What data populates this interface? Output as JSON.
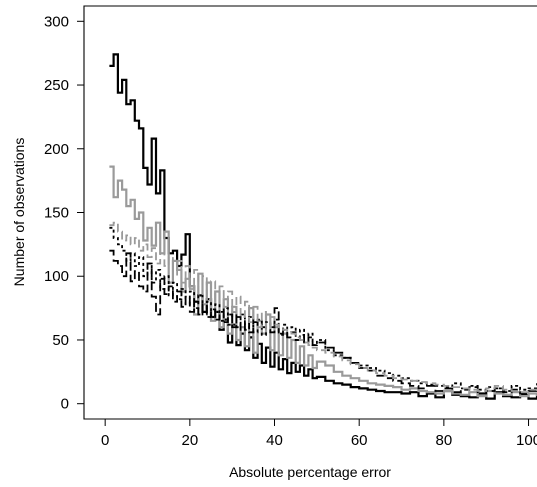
{
  "chart_data": {
    "type": "line",
    "title": "",
    "xlabel": "Absolute percentage error",
    "ylabel": "Number of observations",
    "xlim": [
      -5,
      102
    ],
    "ylim": [
      -12,
      312
    ],
    "xticks": [
      0,
      20,
      40,
      60,
      80,
      100
    ],
    "yticks": [
      0,
      50,
      100,
      150,
      200,
      250,
      300
    ],
    "grid": false,
    "legend": "none",
    "series": [
      {
        "color": "#000000",
        "dash": "solid",
        "width": 2.2,
        "x": [
          1,
          2,
          3,
          4,
          5,
          6,
          7,
          8,
          9,
          10,
          11,
          12,
          13,
          14,
          15,
          16,
          17,
          18,
          19,
          20,
          21,
          22,
          23,
          24,
          25,
          26,
          27,
          28,
          29,
          30,
          31,
          32,
          33,
          34,
          35,
          36,
          37,
          38,
          39,
          40,
          41,
          42,
          43,
          44,
          45,
          46,
          47,
          48,
          49,
          50,
          52,
          54,
          56,
          58,
          60,
          62,
          64,
          66,
          68,
          70,
          72,
          74,
          76,
          78,
          80,
          82,
          84,
          86,
          88,
          90,
          92,
          94,
          96,
          98,
          100,
          102
        ],
        "values": [
          265,
          274,
          244,
          254,
          235,
          238,
          222,
          216,
          185,
          172,
          208,
          165,
          183,
          130,
          118,
          120,
          108,
          117,
          133,
          92,
          80,
          85,
          72,
          82,
          68,
          72,
          58,
          66,
          48,
          62,
          46,
          55,
          42,
          52,
          36,
          47,
          32,
          44,
          29,
          40,
          27,
          35,
          24,
          32,
          25,
          30,
          22,
          27,
          20,
          21,
          18,
          16,
          15,
          13,
          12,
          11,
          10,
          9,
          9,
          8,
          9,
          6,
          8,
          5,
          10,
          7,
          6,
          5,
          8,
          4,
          9,
          6,
          5,
          7,
          4,
          7
        ]
      },
      {
        "color": "#9a9a9a",
        "dash": "solid",
        "width": 2.2,
        "x": [
          1,
          2,
          3,
          4,
          5,
          6,
          7,
          8,
          9,
          10,
          11,
          12,
          13,
          14,
          15,
          16,
          17,
          18,
          19,
          20,
          21,
          22,
          23,
          24,
          25,
          26,
          27,
          28,
          29,
          30,
          31,
          32,
          33,
          34,
          35,
          36,
          37,
          38,
          39,
          40,
          41,
          42,
          43,
          44,
          45,
          46,
          47,
          48,
          49,
          50,
          52,
          54,
          56,
          58,
          60,
          62,
          64,
          66,
          68,
          70,
          72,
          74,
          76,
          78,
          80,
          82,
          84,
          86,
          88,
          90,
          92,
          94,
          96,
          98,
          100,
          102
        ],
        "values": [
          186,
          162,
          175,
          168,
          155,
          160,
          145,
          150,
          128,
          138,
          124,
          142,
          118,
          135,
          95,
          112,
          105,
          88,
          98,
          92,
          70,
          102,
          78,
          95,
          65,
          88,
          60,
          82,
          55,
          76,
          50,
          60,
          45,
          75,
          40,
          65,
          55,
          70,
          42,
          60,
          38,
          55,
          36,
          50,
          32,
          45,
          30,
          38,
          28,
          33,
          30,
          25,
          22,
          20,
          18,
          16,
          15,
          14,
          13,
          11,
          12,
          10,
          9,
          8,
          10,
          8,
          7,
          9,
          6,
          10,
          8,
          7,
          9,
          6,
          8,
          6
        ]
      },
      {
        "color": "#000000",
        "dash": "3,3",
        "width": 1.8,
        "x": [
          1,
          2,
          3,
          4,
          5,
          6,
          7,
          8,
          9,
          10,
          11,
          12,
          13,
          14,
          15,
          16,
          17,
          18,
          19,
          20,
          21,
          22,
          23,
          24,
          25,
          26,
          27,
          28,
          29,
          30,
          31,
          32,
          33,
          34,
          35,
          36,
          37,
          38,
          39,
          40,
          41,
          42,
          43,
          44,
          45,
          46,
          47,
          48,
          49,
          50,
          52,
          54,
          56,
          58,
          60,
          62,
          64,
          66,
          68,
          70,
          72,
          74,
          76,
          78,
          80,
          82,
          84,
          86,
          88,
          90,
          92,
          94,
          96,
          98,
          100,
          102
        ],
        "values": [
          138,
          130,
          125,
          120,
          112,
          118,
          108,
          115,
          100,
          110,
          95,
          105,
          90,
          100,
          85,
          95,
          82,
          90,
          78,
          88,
          75,
          85,
          70,
          80,
          68,
          78,
          65,
          75,
          62,
          72,
          60,
          70,
          58,
          68,
          56,
          66,
          54,
          64,
          60,
          66,
          55,
          62,
          52,
          60,
          50,
          58,
          48,
          55,
          46,
          50,
          42,
          38,
          36,
          32,
          30,
          28,
          26,
          24,
          22,
          20,
          18,
          16,
          15,
          14,
          13,
          16,
          12,
          14,
          11,
          13,
          12,
          10,
          14,
          11,
          12,
          16
        ]
      },
      {
        "color": "#000000",
        "dash": "9,4",
        "width": 1.8,
        "x": [
          1,
          2,
          3,
          4,
          5,
          6,
          7,
          8,
          9,
          10,
          11,
          12,
          13,
          14,
          15,
          16,
          17,
          18,
          19,
          20,
          21,
          22,
          23,
          24,
          25,
          26,
          27,
          28,
          29,
          30,
          31,
          32,
          33,
          34,
          35,
          36,
          37,
          38,
          39,
          40,
          41,
          42,
          43,
          44,
          45,
          46,
          47,
          48,
          49,
          50,
          52,
          54,
          56,
          58,
          60,
          62,
          64,
          66,
          68,
          70,
          72,
          74,
          76,
          78,
          80,
          82,
          84,
          86,
          88,
          90,
          92,
          94,
          96,
          98,
          100,
          102
        ],
        "values": [
          120,
          112,
          108,
          100,
          118,
          96,
          104,
          92,
          88,
          110,
          84,
          70,
          98,
          86,
          92,
          80,
          88,
          76,
          84,
          72,
          80,
          70,
          78,
          68,
          74,
          66,
          72,
          64,
          70,
          60,
          68,
          58,
          66,
          56,
          64,
          62,
          60,
          58,
          56,
          75,
          54,
          58,
          52,
          56,
          50,
          54,
          48,
          52,
          46,
          48,
          44,
          40,
          36,
          32,
          28,
          26,
          22,
          20,
          18,
          16,
          14,
          12,
          14,
          10,
          12,
          9,
          11,
          13,
          8,
          10,
          12,
          9,
          11,
          8,
          10,
          12
        ]
      },
      {
        "color": "#9a9a9a",
        "dash": "8,4",
        "width": 1.8,
        "x": [
          1,
          2,
          3,
          4,
          5,
          6,
          7,
          8,
          9,
          10,
          11,
          12,
          13,
          14,
          15,
          16,
          17,
          18,
          19,
          20,
          21,
          22,
          23,
          24,
          25,
          26,
          27,
          28,
          29,
          30,
          31,
          32,
          33,
          34,
          35,
          36,
          37,
          38,
          39,
          40,
          41,
          42,
          43,
          44,
          45,
          46,
          47,
          48,
          49,
          50,
          52,
          54,
          56,
          58,
          60,
          62,
          64,
          66,
          68,
          70,
          72,
          74,
          76,
          78,
          80,
          82,
          84,
          86,
          88,
          90,
          92,
          94,
          96,
          98,
          100,
          102
        ],
        "values": [
          140,
          142,
          135,
          128,
          132,
          125,
          130,
          120,
          125,
          115,
          122,
          110,
          118,
          108,
          115,
          100,
          112,
          95,
          108,
          90,
          105,
          86,
          100,
          82,
          96,
          80,
          92,
          76,
          88,
          72,
          84,
          68,
          80,
          64,
          76,
          60,
          72,
          58,
          68,
          62,
          60,
          58,
          56,
          55,
          52,
          50,
          48,
          46,
          44,
          42,
          40,
          37,
          34,
          31,
          28,
          26,
          24,
          22,
          20,
          19,
          18,
          17,
          16,
          15,
          14,
          13,
          12,
          11,
          10,
          12,
          14,
          11,
          10,
          9,
          11,
          10
        ]
      }
    ]
  }
}
